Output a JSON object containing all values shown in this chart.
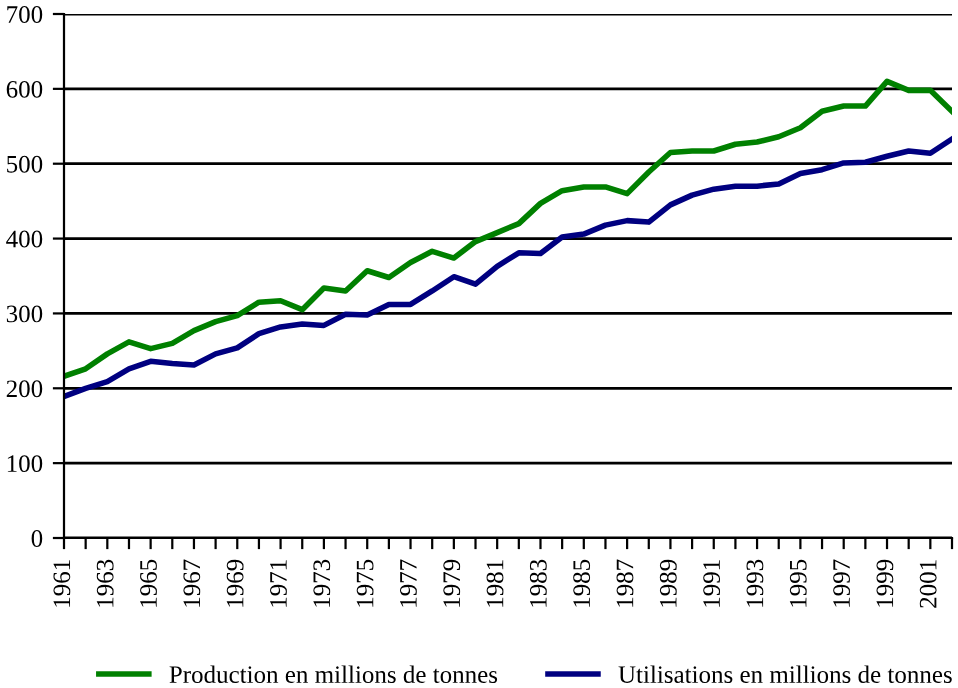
{
  "chart_data": {
    "type": "line",
    "categories": [
      "1961",
      null,
      "1963",
      null,
      "1965",
      null,
      "1967",
      null,
      "1969",
      null,
      "1971",
      null,
      "1973",
      null,
      "1975",
      null,
      "1977",
      null,
      "1979",
      null,
      "1981",
      null,
      "1983",
      null,
      "1985",
      null,
      "1987",
      null,
      "1989",
      null,
      "1991",
      null,
      "1993",
      null,
      "1995",
      null,
      "1997",
      null,
      "1999",
      null,
      "2001",
      null
    ],
    "series": [
      {
        "name": "Production en millions de tonnes",
        "color": "#008000",
        "values": [
          216,
          226,
          246,
          262,
          253,
          260,
          277,
          289,
          297,
          315,
          317,
          305,
          334,
          330,
          357,
          348,
          368,
          383,
          374,
          396,
          408,
          420,
          447,
          464,
          469,
          469,
          460,
          489,
          515,
          517,
          517,
          526,
          529,
          536,
          548,
          570,
          577,
          577,
          610,
          598,
          598,
          570
        ]
      },
      {
        "name": "Utilisations en millions de tonnes",
        "color": "#000080",
        "values": [
          189,
          200,
          209,
          226,
          236,
          233,
          231,
          246,
          254,
          273,
          282,
          286,
          284,
          299,
          298,
          312,
          312,
          330,
          349,
          339,
          363,
          381,
          380,
          402,
          406,
          418,
          424,
          422,
          445,
          458,
          466,
          470,
          470,
          473,
          487,
          492,
          501,
          502,
          510,
          517,
          514,
          533
        ]
      }
    ],
    "ylim": [
      0,
      700
    ],
    "yticks": [
      0,
      100,
      200,
      300,
      400,
      500,
      600,
      700
    ],
    "grid": "y",
    "legend": "bottom",
    "marker": "none",
    "line_style": "solid"
  }
}
